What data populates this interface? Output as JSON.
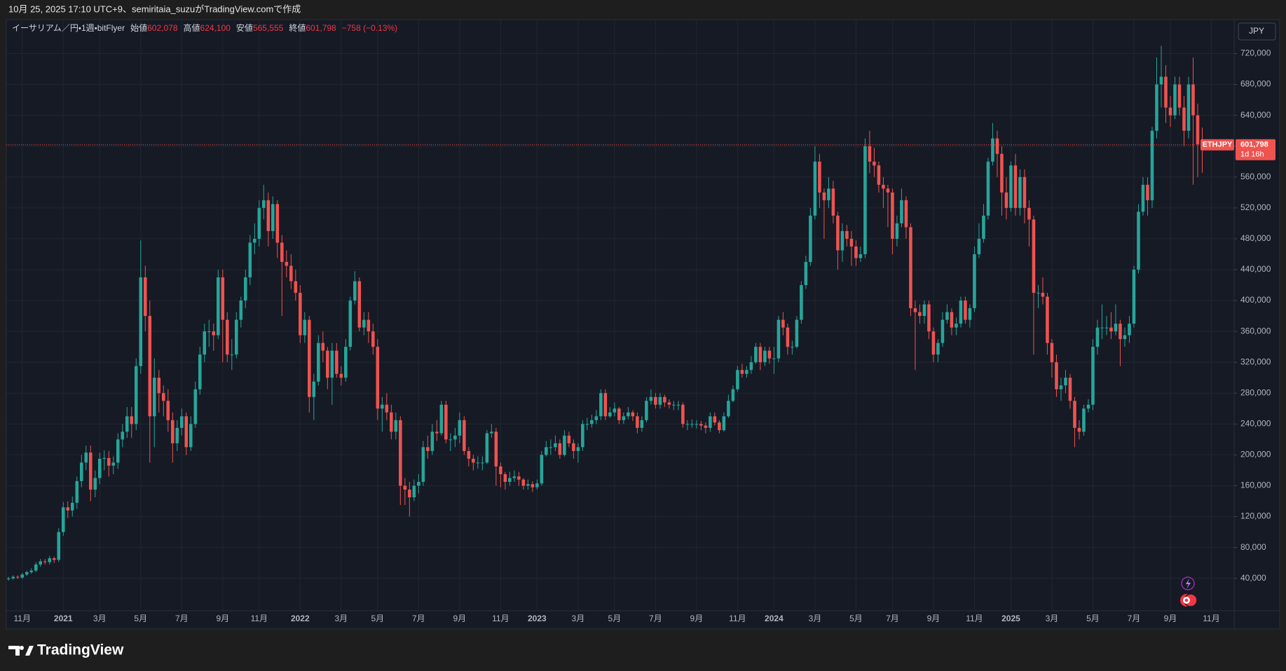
{
  "chart_data": {
    "type": "candlestick",
    "caption": "10月 25, 2025 17:10 UTC+9、semiritaia_suzuがTradingView.comで作成",
    "header": {
      "title": "イーサリアム／円・1週・bitFlyer",
      "open_label": "始値",
      "open": "602,078",
      "high_label": "高値",
      "high": "624,100",
      "low_label": "安値",
      "low": "565,555",
      "close_label": "終値",
      "close": "601,798",
      "change": "−758 (−0.13%)"
    },
    "symbol": "ETHJPY",
    "countdown": "1d 16h",
    "currency": "JPY",
    "brand": "TradingView",
    "up_color": "#26a69a",
    "down_color": "#ef5350",
    "grid": true,
    "open": [
      39000,
      40000,
      42000,
      41000,
      45000,
      48000,
      50000,
      58000,
      62000,
      61000,
      66000,
      64000,
      100000,
      132000,
      128000,
      138000,
      166000,
      190000,
      203000,
      155000,
      170000,
      195000,
      196000,
      186000,
      190000,
      220000,
      230000,
      250000,
      240000,
      315000,
      430000,
      380000,
      250000,
      300000,
      280000,
      270000,
      245000,
      215000,
      235000,
      250000,
      210000,
      240000,
      285000,
      330000,
      360000,
      360000,
      355000,
      430000,
      375000,
      330000,
      330000,
      375000,
      400000,
      430000,
      475000,
      480000,
      520000,
      530000,
      490000,
      525000,
      475000,
      450000,
      445000,
      425000,
      410000,
      355000,
      375000,
      275000,
      295000,
      345000,
      335000,
      300000,
      335000,
      305000,
      300000,
      340000,
      400000,
      425000,
      365000,
      375000,
      360000,
      340000,
      260000,
      265000,
      255000,
      230000,
      245000,
      160000,
      155000,
      145000,
      160000,
      165000,
      210000,
      205000,
      230000,
      228000,
      265000,
      220000,
      220000,
      225000,
      245000,
      205000,
      195000,
      190000,
      190000,
      190000,
      228000,
      230000,
      185000,
      175000,
      165000,
      170000,
      172000,
      168000,
      160000,
      162000,
      158000,
      163000,
      200000,
      210000,
      210000,
      215000,
      200000,
      225000,
      215000,
      205000,
      210000,
      240000,
      240000,
      245000,
      250000,
      280000,
      250000,
      255000,
      260000,
      245000,
      250000,
      255000,
      250000,
      235000,
      245000,
      270000,
      275000,
      265000,
      275000,
      268000,
      265000,
      265000,
      265000,
      240000,
      240000,
      240000,
      240000,
      238000,
      235000,
      250000,
      242000,
      232000,
      250000,
      270000,
      285000,
      310000,
      305000,
      310000,
      320000,
      340000,
      320000,
      335000,
      325000,
      325000,
      375000,
      365000,
      340000,
      340000,
      375000,
      420000,
      450000,
      510000,
      580000,
      540000,
      530000,
      545000,
      510000,
      465000,
      490000,
      480000,
      470000,
      455000,
      460000,
      600000,
      580000,
      575000,
      550000,
      545000,
      540000,
      480000,
      500000,
      530000,
      495000,
      390000,
      385000,
      380000,
      395000,
      360000,
      330000,
      345000,
      375000,
      385000,
      365000,
      370000,
      400000,
      375000,
      390000,
      460000,
      480000,
      510000,
      580000,
      610000,
      590000,
      540000,
      520000,
      575000,
      520000,
      560000,
      520000,
      505000,
      410000,
      410000,
      405000,
      345000,
      320000,
      285000,
      290000,
      300000,
      270000,
      235000,
      230000,
      260000,
      265000,
      340000,
      365000,
      365000,
      365000,
      360000,
      370000,
      350000,
      355000,
      370000,
      440000,
      515000,
      550000,
      530000,
      620000,
      680000,
      690000,
      650000,
      640000,
      680000,
      650000,
      620000,
      680000,
      640000,
      602078
    ],
    "high": [
      42000,
      44000,
      44000,
      47000,
      50000,
      53000,
      61000,
      65000,
      65000,
      69000,
      68000,
      105000,
      139000,
      140000,
      146000,
      172000,
      200000,
      212000,
      212000,
      180000,
      203000,
      206000,
      205000,
      198000,
      228000,
      240000,
      262000,
      262000,
      325000,
      478000,
      445000,
      400000,
      325000,
      310000,
      290000,
      285000,
      255000,
      245000,
      260000,
      255000,
      250000,
      295000,
      340000,
      370000,
      375000,
      370000,
      440000,
      440000,
      385000,
      350000,
      385000,
      405000,
      440000,
      485000,
      500000,
      530000,
      550000,
      540000,
      535000,
      530000,
      485000,
      465000,
      460000,
      440000,
      420000,
      385000,
      380000,
      305000,
      355000,
      360000,
      340000,
      345000,
      345000,
      315000,
      350000,
      405000,
      438000,
      430000,
      385000,
      385000,
      370000,
      350000,
      275000,
      280000,
      265000,
      255000,
      250000,
      170000,
      165000,
      168000,
      175000,
      218000,
      225000,
      240000,
      245000,
      270000,
      270000,
      228000,
      235000,
      255000,
      250000,
      210000,
      200000,
      198000,
      198000,
      232000,
      240000,
      235000,
      190000,
      178000,
      178000,
      180000,
      178000,
      170000,
      168000,
      166000,
      168000,
      205000,
      218000,
      220000,
      225000,
      220000,
      232000,
      230000,
      220000,
      215000,
      245000,
      248000,
      252000,
      258000,
      285000,
      285000,
      262000,
      268000,
      262000,
      255000,
      262000,
      258000,
      255000,
      250000,
      275000,
      285000,
      280000,
      280000,
      278000,
      272000,
      270000,
      270000,
      268000,
      245000,
      246000,
      245000,
      244000,
      242000,
      255000,
      255000,
      245000,
      255000,
      278000,
      290000,
      315000,
      318000,
      315000,
      328000,
      345000,
      345000,
      340000,
      340000,
      340000,
      380000,
      385000,
      370000,
      348000,
      380000,
      425000,
      458000,
      520000,
      600000,
      590000,
      545000,
      560000,
      555000,
      515000,
      500000,
      498000,
      490000,
      478000,
      470000,
      610000,
      620000,
      598000,
      580000,
      560000,
      550000,
      545000,
      510000,
      545000,
      535000,
      500000,
      400000,
      395000,
      400000,
      400000,
      365000,
      350000,
      385000,
      395000,
      390000,
      378000,
      405000,
      405000,
      395000,
      470000,
      500000,
      525000,
      585000,
      630000,
      620000,
      600000,
      560000,
      580000,
      590000,
      570000,
      570000,
      530000,
      510000,
      420000,
      430000,
      410000,
      350000,
      330000,
      300000,
      310000,
      305000,
      275000,
      245000,
      265000,
      272000,
      350000,
      375000,
      395000,
      380000,
      385000,
      395000,
      375000,
      365000,
      380000,
      445000,
      525000,
      560000,
      560000,
      625000,
      715000,
      730000,
      705000,
      665000,
      690000,
      690000,
      665000,
      690000,
      715000,
      655000,
      624100
    ],
    "low": [
      37000,
      38000,
      39000,
      39000,
      43000,
      46000,
      48000,
      55000,
      58000,
      58000,
      60000,
      61000,
      95000,
      118000,
      120000,
      130000,
      158000,
      180000,
      140000,
      145000,
      162000,
      180000,
      172000,
      175000,
      182000,
      210000,
      222000,
      222000,
      232000,
      305000,
      360000,
      190000,
      210000,
      255000,
      250000,
      230000,
      190000,
      205000,
      225000,
      200000,
      205000,
      235000,
      278000,
      320000,
      340000,
      335000,
      350000,
      320000,
      320000,
      310000,
      325000,
      365000,
      390000,
      420000,
      460000,
      470000,
      505000,
      470000,
      480000,
      455000,
      380000,
      430000,
      415000,
      400000,
      345000,
      345000,
      255000,
      245000,
      290000,
      320000,
      285000,
      265000,
      300000,
      290000,
      295000,
      335000,
      395000,
      360000,
      355000,
      345000,
      330000,
      245000,
      230000,
      245000,
      220000,
      220000,
      135000,
      135000,
      120000,
      140000,
      150000,
      160000,
      195000,
      200000,
      218000,
      225000,
      215000,
      205000,
      210000,
      215000,
      200000,
      185000,
      180000,
      182000,
      180000,
      188000,
      222000,
      160000,
      158000,
      155000,
      160000,
      165000,
      160000,
      155000,
      155000,
      152000,
      155000,
      160000,
      198000,
      200000,
      205000,
      195000,
      198000,
      210000,
      195000,
      190000,
      205000,
      232000,
      235000,
      240000,
      245000,
      245000,
      248000,
      250000,
      240000,
      240000,
      246000,
      244000,
      228000,
      230000,
      242000,
      265000,
      260000,
      260000,
      262000,
      260000,
      258000,
      258000,
      235000,
      232000,
      235000,
      234000,
      232000,
      228000,
      230000,
      238000,
      228000,
      230000,
      248000,
      268000,
      282000,
      300000,
      300000,
      305000,
      318000,
      310000,
      315000,
      318000,
      305000,
      320000,
      355000,
      330000,
      330000,
      338000,
      370000,
      415000,
      445000,
      505000,
      520000,
      480000,
      520000,
      500000,
      440000,
      450000,
      470000,
      445000,
      445000,
      450000,
      455000,
      565000,
      560000,
      540000,
      520000,
      495000,
      460000,
      470000,
      495000,
      480000,
      380000,
      310000,
      370000,
      370000,
      350000,
      320000,
      320000,
      340000,
      370000,
      355000,
      355000,
      365000,
      370000,
      365000,
      385000,
      455000,
      475000,
      505000,
      575000,
      560000,
      510000,
      505000,
      515000,
      510000,
      510000,
      500000,
      470000,
      330000,
      390000,
      395000,
      330000,
      300000,
      275000,
      270000,
      280000,
      260000,
      210000,
      220000,
      225000,
      255000,
      258000,
      330000,
      350000,
      355000,
      350000,
      355000,
      315000,
      340000,
      345000,
      365000,
      435000,
      510000,
      510000,
      520000,
      610000,
      650000,
      630000,
      625000,
      635000,
      640000,
      600000,
      610000,
      550000,
      560000,
      565555
    ],
    "close": [
      40000,
      42000,
      41000,
      45000,
      48000,
      50000,
      58000,
      62000,
      61000,
      66000,
      64000,
      100000,
      132000,
      128000,
      138000,
      166000,
      190000,
      203000,
      155000,
      170000,
      195000,
      196000,
      186000,
      190000,
      220000,
      230000,
      250000,
      240000,
      315000,
      430000,
      380000,
      250000,
      300000,
      280000,
      270000,
      245000,
      215000,
      235000,
      250000,
      210000,
      240000,
      285000,
      330000,
      360000,
      360000,
      355000,
      430000,
      375000,
      330000,
      330000,
      375000,
      400000,
      430000,
      475000,
      480000,
      520000,
      530000,
      490000,
      525000,
      475000,
      450000,
      445000,
      425000,
      410000,
      355000,
      375000,
      275000,
      295000,
      345000,
      335000,
      300000,
      335000,
      305000,
      300000,
      340000,
      400000,
      425000,
      365000,
      375000,
      360000,
      340000,
      260000,
      265000,
      255000,
      230000,
      245000,
      160000,
      155000,
      145000,
      160000,
      165000,
      210000,
      205000,
      230000,
      228000,
      265000,
      220000,
      220000,
      225000,
      245000,
      205000,
      195000,
      190000,
      190000,
      190000,
      228000,
      230000,
      185000,
      175000,
      165000,
      170000,
      172000,
      168000,
      160000,
      162000,
      158000,
      163000,
      200000,
      210000,
      210000,
      215000,
      200000,
      225000,
      215000,
      205000,
      210000,
      240000,
      240000,
      245000,
      250000,
      280000,
      250000,
      255000,
      260000,
      245000,
      250000,
      255000,
      250000,
      235000,
      245000,
      270000,
      275000,
      265000,
      275000,
      268000,
      265000,
      265000,
      265000,
      240000,
      240000,
      240000,
      240000,
      238000,
      235000,
      250000,
      242000,
      232000,
      250000,
      270000,
      285000,
      310000,
      305000,
      310000,
      320000,
      340000,
      320000,
      335000,
      325000,
      325000,
      375000,
      365000,
      340000,
      340000,
      375000,
      420000,
      450000,
      510000,
      580000,
      540000,
      530000,
      545000,
      510000,
      465000,
      490000,
      480000,
      470000,
      455000,
      460000,
      600000,
      580000,
      575000,
      550000,
      545000,
      540000,
      480000,
      500000,
      530000,
      495000,
      390000,
      385000,
      380000,
      395000,
      360000,
      330000,
      345000,
      375000,
      385000,
      365000,
      370000,
      400000,
      375000,
      390000,
      460000,
      480000,
      510000,
      580000,
      610000,
      590000,
      540000,
      520000,
      575000,
      520000,
      560000,
      520000,
      505000,
      410000,
      410000,
      405000,
      345000,
      320000,
      285000,
      290000,
      300000,
      270000,
      235000,
      230000,
      260000,
      265000,
      340000,
      365000,
      365000,
      365000,
      360000,
      370000,
      350000,
      355000,
      370000,
      440000,
      515000,
      550000,
      530000,
      620000,
      680000,
      690000,
      650000,
      640000,
      680000,
      650000,
      620000,
      680000,
      640000,
      602556,
      601798
    ],
    "xlim": [
      -0.5,
      269
    ],
    "xticks": [
      {
        "value": 3,
        "label": "11月"
      },
      {
        "value": 12,
        "label": "2021"
      },
      {
        "value": 20,
        "label": "3月"
      },
      {
        "value": 29,
        "label": "5月"
      },
      {
        "value": 38,
        "label": "7月"
      },
      {
        "value": 47,
        "label": "9月"
      },
      {
        "value": 55,
        "label": "11月"
      },
      {
        "value": 64,
        "label": "2022"
      },
      {
        "value": 73,
        "label": "3月"
      },
      {
        "value": 81,
        "label": "5月"
      },
      {
        "value": 90,
        "label": "7月"
      },
      {
        "value": 99,
        "label": "9月"
      },
      {
        "value": 108,
        "label": "11月"
      },
      {
        "value": 116,
        "label": "2023"
      },
      {
        "value": 125,
        "label": "3月"
      },
      {
        "value": 133,
        "label": "5月"
      },
      {
        "value": 142,
        "label": "7月"
      },
      {
        "value": 151,
        "label": "9月"
      },
      {
        "value": 160,
        "label": "11月"
      },
      {
        "value": 168,
        "label": "2024"
      },
      {
        "value": 177,
        "label": "3月"
      },
      {
        "value": 186,
        "label": "5月"
      },
      {
        "value": 194,
        "label": "7月"
      },
      {
        "value": 203,
        "label": "9月"
      },
      {
        "value": 212,
        "label": "11月"
      },
      {
        "value": 220,
        "label": "2025"
      },
      {
        "value": 229,
        "label": "3月"
      },
      {
        "value": 238,
        "label": "5月"
      },
      {
        "value": 247,
        "label": "7月"
      },
      {
        "value": 255,
        "label": "9月"
      },
      {
        "value": 264,
        "label": "11月"
      }
    ],
    "ylim": [
      -2000,
      764000
    ],
    "yticks": [
      {
        "value": 40000,
        "label": "40,000"
      },
      {
        "value": 80000,
        "label": "80,000"
      },
      {
        "value": 120000,
        "label": "120,000"
      },
      {
        "value": 160000,
        "label": "160,000"
      },
      {
        "value": 200000,
        "label": "200,000"
      },
      {
        "value": 240000,
        "label": "240,000"
      },
      {
        "value": 280000,
        "label": "280,000"
      },
      {
        "value": 320000,
        "label": "320,000"
      },
      {
        "value": 360000,
        "label": "360,000"
      },
      {
        "value": 400000,
        "label": "400,000"
      },
      {
        "value": 440000,
        "label": "440,000"
      },
      {
        "value": 480000,
        "label": "480,000"
      },
      {
        "value": 520000,
        "label": "520,000"
      },
      {
        "value": 560000,
        "label": "560,000"
      },
      {
        "value": 600000,
        "label": "600,000"
      },
      {
        "value": 640000,
        "label": "640,000"
      },
      {
        "value": 680000,
        "label": "680,000"
      },
      {
        "value": 720000,
        "label": "720,000"
      }
    ]
  }
}
